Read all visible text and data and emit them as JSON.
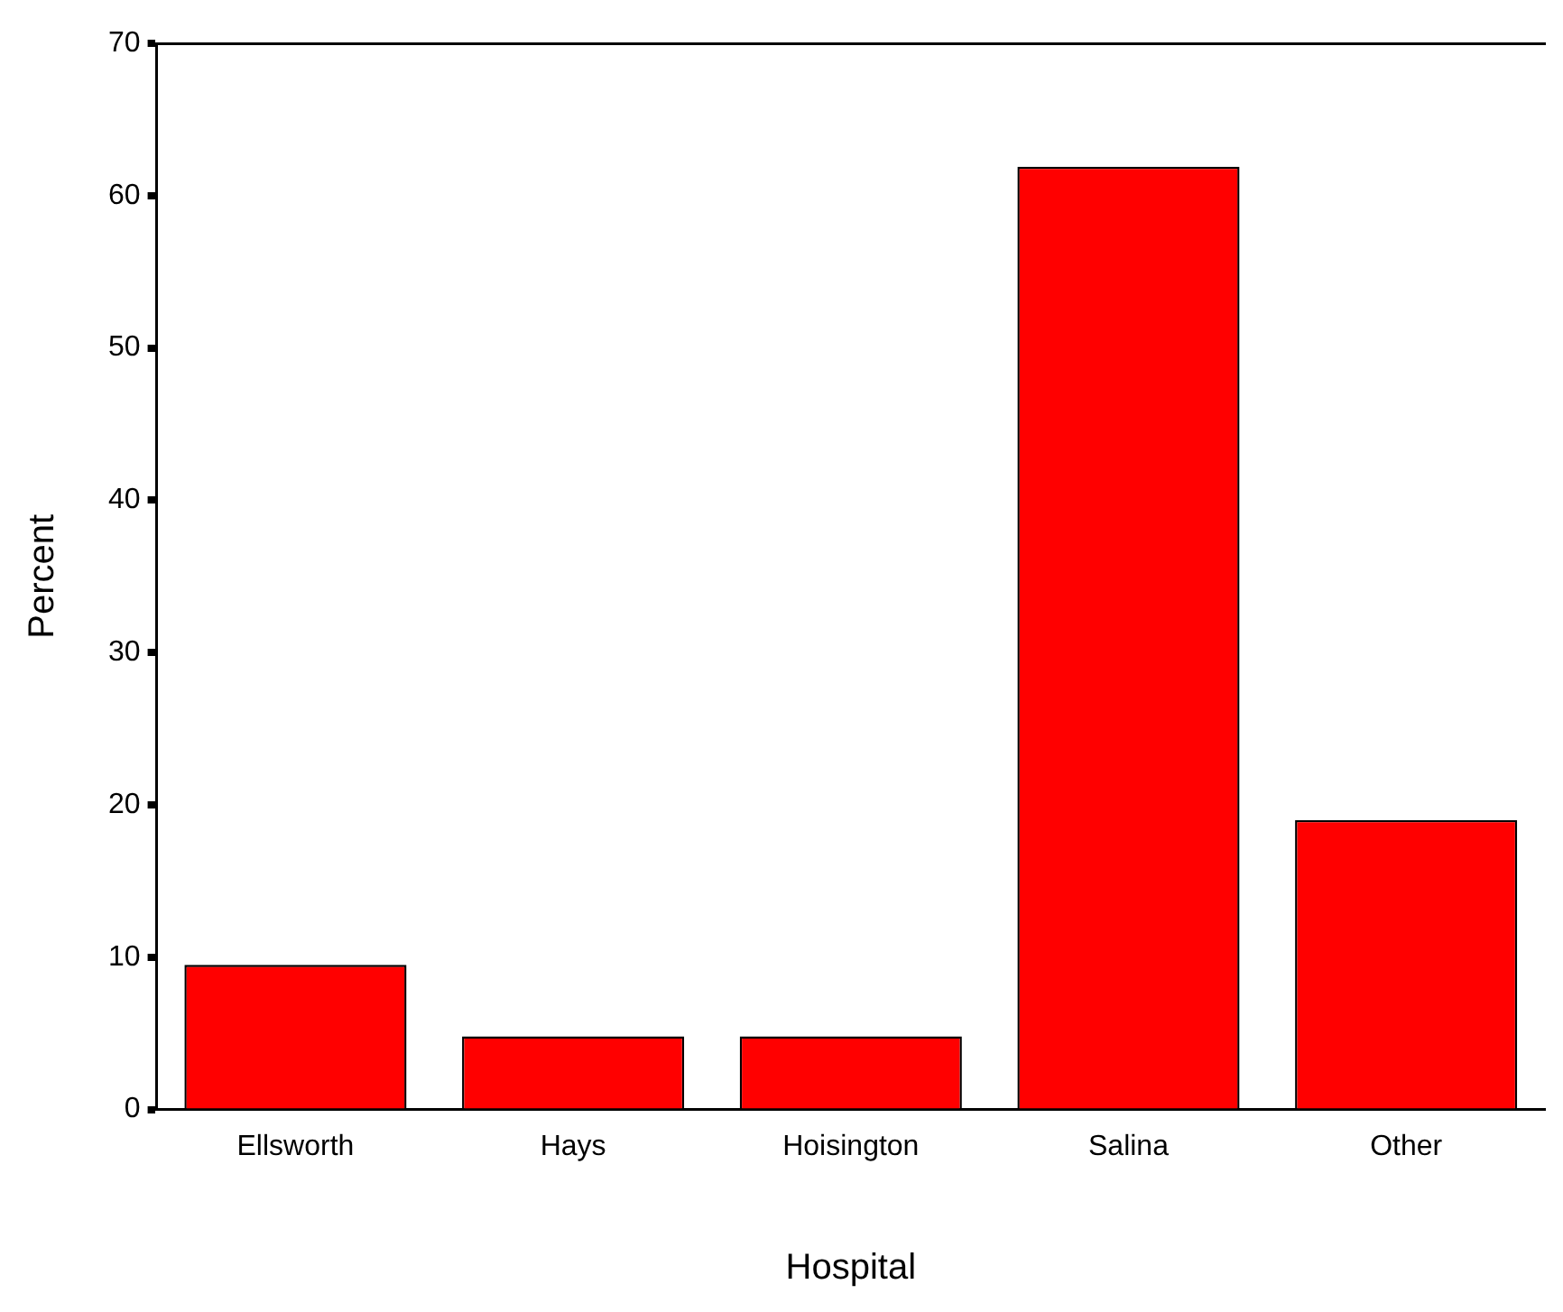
{
  "chart_data": {
    "type": "bar",
    "xlabel": "Hospital",
    "ylabel": "Percent",
    "categories": [
      "Ellsworth",
      "Hays",
      "Hoisington",
      "Salina",
      "Other"
    ],
    "values": [
      9.5,
      4.8,
      4.8,
      61.9,
      19.0
    ],
    "color": "#ff0000",
    "ylim": [
      0,
      70
    ],
    "yticks": [
      0,
      10,
      20,
      30,
      40,
      50,
      60,
      70
    ],
    "grid": false,
    "legend": false
  }
}
